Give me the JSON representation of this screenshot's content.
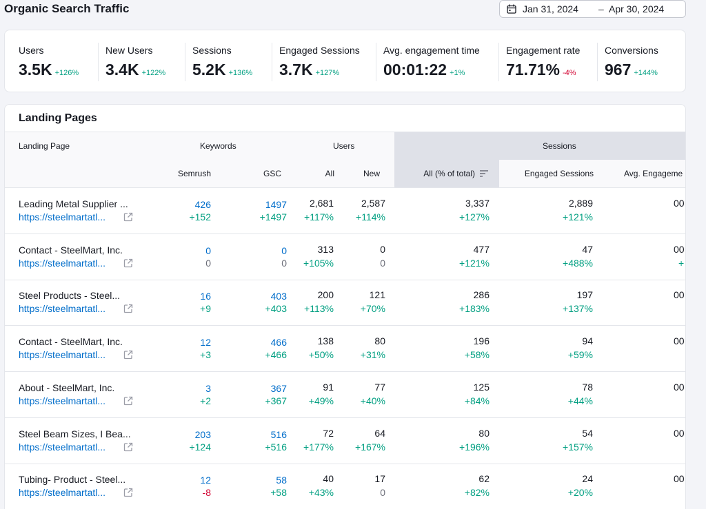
{
  "page": {
    "title": "Organic Search Traffic"
  },
  "date_range": {
    "start": "Jan 31, 2024",
    "separator": "–",
    "end": "Apr 30, 2024",
    "icon": "calendar-icon"
  },
  "kpis": [
    {
      "label": "Users",
      "value": "3.5K",
      "change": "+126%",
      "trend": "up"
    },
    {
      "label": "New Users",
      "value": "3.4K",
      "change": "+122%",
      "trend": "up"
    },
    {
      "label": "Sessions",
      "value": "5.2K",
      "change": "+136%",
      "trend": "up"
    },
    {
      "label": "Engaged Sessions",
      "value": "3.7K",
      "change": "+127%",
      "trend": "up"
    },
    {
      "label": "Avg. engagement time",
      "value": "00:01:22",
      "change": "+1%",
      "trend": "up"
    },
    {
      "label": "Engagement rate",
      "value": "71.71%",
      "change": "-4%",
      "trend": "down"
    },
    {
      "label": "Conversions",
      "value": "967",
      "change": "+144%",
      "trend": "up"
    }
  ],
  "table": {
    "title": "Landing Pages",
    "groups": {
      "landing_page": "Landing Page",
      "keywords": "Keywords",
      "users": "Users",
      "sessions": "Sessions"
    },
    "columns": {
      "semrush": "Semrush",
      "gsc": "GSC",
      "users_all": "All",
      "users_new": "New",
      "sessions_all": "All (% of total)",
      "engaged": "Engaged Sessions",
      "avg_engagement": "Avg. Engageme"
    },
    "rows": [
      {
        "name": "Leading Metal Supplier ...",
        "url": "https://steelmartatl...",
        "semrush": "426",
        "semrush_chg": "+152",
        "gsc": "1497",
        "gsc_chg": "+1497",
        "users_all": "2,681",
        "users_all_chg": "+117%",
        "users_new": "2,587",
        "users_new_chg": "+114%",
        "sessions": "3,337",
        "sessions_chg": "+127%",
        "engaged": "2,889",
        "engaged_chg": "+121%",
        "avg": "00",
        "avg_chg": ""
      },
      {
        "name": "Contact - SteelMart, Inc.",
        "url": "https://steelmartatl...",
        "semrush": "0",
        "semrush_chg": "0",
        "gsc": "0",
        "gsc_chg": "0",
        "users_all": "313",
        "users_all_chg": "+105%",
        "users_new": "0",
        "users_new_chg": "0",
        "sessions": "477",
        "sessions_chg": "+121%",
        "engaged": "47",
        "engaged_chg": "+488%",
        "avg": "00",
        "avg_chg": "+"
      },
      {
        "name": "Steel Products - Steel...",
        "url": "https://steelmartatl...",
        "semrush": "16",
        "semrush_chg": "+9",
        "gsc": "403",
        "gsc_chg": "+403",
        "users_all": "200",
        "users_all_chg": "+113%",
        "users_new": "121",
        "users_new_chg": "+70%",
        "sessions": "286",
        "sessions_chg": "+183%",
        "engaged": "197",
        "engaged_chg": "+137%",
        "avg": "00",
        "avg_chg": ""
      },
      {
        "name": "Contact - SteelMart, Inc.",
        "url": "https://steelmartatl...",
        "semrush": "12",
        "semrush_chg": "+3",
        "gsc": "466",
        "gsc_chg": "+466",
        "users_all": "138",
        "users_all_chg": "+50%",
        "users_new": "80",
        "users_new_chg": "+31%",
        "sessions": "196",
        "sessions_chg": "+58%",
        "engaged": "94",
        "engaged_chg": "+59%",
        "avg": "00",
        "avg_chg": ""
      },
      {
        "name": "About - SteelMart, Inc.",
        "url": "https://steelmartatl...",
        "semrush": "3",
        "semrush_chg": "+2",
        "gsc": "367",
        "gsc_chg": "+367",
        "users_all": "91",
        "users_all_chg": "+49%",
        "users_new": "77",
        "users_new_chg": "+40%",
        "sessions": "125",
        "sessions_chg": "+84%",
        "engaged": "78",
        "engaged_chg": "+44%",
        "avg": "00",
        "avg_chg": ""
      },
      {
        "name": "Steel Beam Sizes, I Bea...",
        "url": "https://steelmartatl...",
        "semrush": "203",
        "semrush_chg": "+124",
        "gsc": "516",
        "gsc_chg": "+516",
        "users_all": "72",
        "users_all_chg": "+177%",
        "users_new": "64",
        "users_new_chg": "+167%",
        "sessions": "80",
        "sessions_chg": "+196%",
        "engaged": "54",
        "engaged_chg": "+157%",
        "avg": "00",
        "avg_chg": ""
      },
      {
        "name": "Tubing- Product - Steel...",
        "url": "https://steelmartatl...",
        "semrush": "12",
        "semrush_chg": "-8",
        "gsc": "58",
        "gsc_chg": "+58",
        "users_all": "40",
        "users_all_chg": "+43%",
        "users_new": "17",
        "users_new_chg": "0",
        "sessions": "62",
        "sessions_chg": "+82%",
        "engaged": "24",
        "engaged_chg": "+20%",
        "avg": "00",
        "avg_chg": ""
      }
    ]
  },
  "colors": {
    "positive": "#009f81",
    "negative": "#d1002f",
    "link": "#006dca",
    "neutral": "#6c6e79"
  }
}
